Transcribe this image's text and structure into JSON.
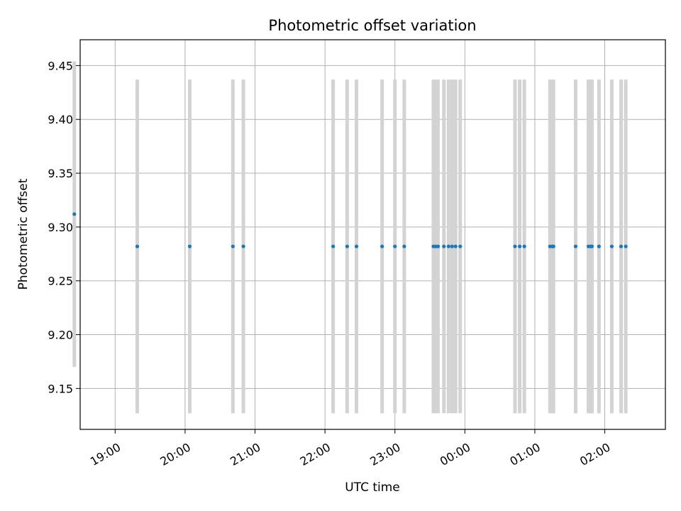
{
  "chart_data": {
    "type": "scatter",
    "title": "Photometric offset variation",
    "xlabel": "UTC time",
    "ylabel": "Photometric offset",
    "x_axis_kind": "time",
    "xlim": [
      "18:30",
      "02:52"
    ],
    "ylim": [
      9.112,
      9.474
    ],
    "grid": true,
    "x_ticks": [
      "19:00",
      "20:00",
      "21:00",
      "22:00",
      "23:00",
      "00:00",
      "01:00",
      "02:00"
    ],
    "y_ticks": [
      "9.15",
      "9.20",
      "9.25",
      "9.30",
      "9.35",
      "9.40",
      "9.45"
    ],
    "colors": {
      "point": "#1f77b4",
      "errorbar": "#d3d3d3",
      "grid": "#b0b0b0"
    },
    "points": [
      {
        "time": "18:25",
        "offset": 9.312,
        "err": 0.142
      },
      {
        "time": "19:19",
        "offset": 9.282,
        "err": 0.155
      },
      {
        "time": "20:04",
        "offset": 9.282,
        "err": 0.155
      },
      {
        "time": "20:41",
        "offset": 9.282,
        "err": 0.155
      },
      {
        "time": "20:50",
        "offset": 9.282,
        "err": 0.155
      },
      {
        "time": "22:07",
        "offset": 9.282,
        "err": 0.155
      },
      {
        "time": "22:19",
        "offset": 9.282,
        "err": 0.155
      },
      {
        "time": "22:27",
        "offset": 9.282,
        "err": 0.155
      },
      {
        "time": "22:49",
        "offset": 9.282,
        "err": 0.155
      },
      {
        "time": "23:00",
        "offset": 9.282,
        "err": 0.155
      },
      {
        "time": "23:08",
        "offset": 9.282,
        "err": 0.155
      },
      {
        "time": "23:33",
        "offset": 9.282,
        "err": 0.155
      },
      {
        "time": "23:35",
        "offset": 9.282,
        "err": 0.155
      },
      {
        "time": "23:37",
        "offset": 9.282,
        "err": 0.155
      },
      {
        "time": "23:42",
        "offset": 9.282,
        "err": 0.155
      },
      {
        "time": "23:46",
        "offset": 9.282,
        "err": 0.155
      },
      {
        "time": "23:49",
        "offset": 9.282,
        "err": 0.155
      },
      {
        "time": "23:52",
        "offset": 9.282,
        "err": 0.155
      },
      {
        "time": "23:56",
        "offset": 9.282,
        "err": 0.155
      },
      {
        "time": "00:43",
        "offset": 9.282,
        "err": 0.155
      },
      {
        "time": "00:47",
        "offset": 9.282,
        "err": 0.155
      },
      {
        "time": "00:51",
        "offset": 9.282,
        "err": 0.155
      },
      {
        "time": "01:13",
        "offset": 9.282,
        "err": 0.155
      },
      {
        "time": "01:15",
        "offset": 9.282,
        "err": 0.155
      },
      {
        "time": "01:16",
        "offset": 9.282,
        "err": 0.155
      },
      {
        "time": "01:35",
        "offset": 9.282,
        "err": 0.155
      },
      {
        "time": "01:46",
        "offset": 9.282,
        "err": 0.155
      },
      {
        "time": "01:48",
        "offset": 9.282,
        "err": 0.155
      },
      {
        "time": "01:49",
        "offset": 9.282,
        "err": 0.155
      },
      {
        "time": "01:55",
        "offset": 9.282,
        "err": 0.155
      },
      {
        "time": "02:06",
        "offset": 9.282,
        "err": 0.155
      },
      {
        "time": "02:14",
        "offset": 9.282,
        "err": 0.155
      },
      {
        "time": "02:18",
        "offset": 9.282,
        "err": 0.155
      }
    ]
  }
}
